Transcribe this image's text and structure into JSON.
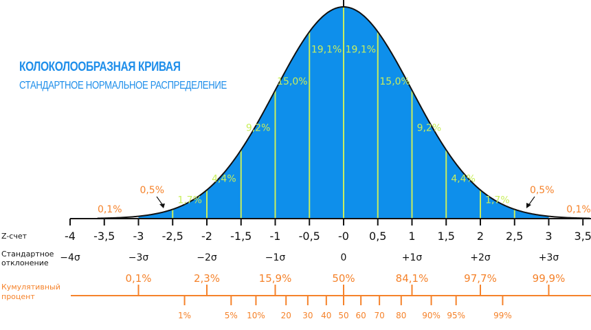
{
  "title": "КОЛОКОЛООБРАЗНАЯ КРИВАЯ",
  "subtitle": "СТАНДАРТНОЕ НОРМАЛЬНОЕ РАСПРЕДЕЛЕНИЕ",
  "colors": {
    "fill": "#0E8FEB",
    "divider": "#C9EE5C",
    "accent": "#F5822A",
    "text_blue": "#1E8EEA",
    "axis": "#111111"
  },
  "row_labels": {
    "z_score": "Z-счет",
    "std_line1": "Стандартное",
    "std_line2": "отклонение",
    "cum_line1": "Кумулятивный",
    "cum_line2": "процент"
  },
  "z_ticks": [
    {
      "z": -4,
      "label": "-4"
    },
    {
      "z": -3.5,
      "label": "-3,5"
    },
    {
      "z": -3,
      "label": "-3"
    },
    {
      "z": -2.5,
      "label": "-2,5"
    },
    {
      "z": -2,
      "label": "-2"
    },
    {
      "z": -1.5,
      "label": "-1,5"
    },
    {
      "z": -1,
      "label": "-1"
    },
    {
      "z": -0.5,
      "label": "-0,5"
    },
    {
      "z": 0,
      "label": "-0"
    },
    {
      "z": 0.5,
      "label": "0,5"
    },
    {
      "z": 1,
      "label": "1"
    },
    {
      "z": 1.5,
      "label": "1,5"
    },
    {
      "z": 2,
      "label": "2"
    },
    {
      "z": 2.5,
      "label": "2,5"
    },
    {
      "z": 3,
      "label": "3"
    },
    {
      "z": 3.5,
      "label": "3,5"
    }
  ],
  "sigma_labels": [
    {
      "z": -4,
      "label": "−4σ"
    },
    {
      "z": -3,
      "label": "−3σ"
    },
    {
      "z": -2,
      "label": "−2σ"
    },
    {
      "z": -1,
      "label": "−1σ"
    },
    {
      "z": 0,
      "label": "0"
    },
    {
      "z": 1,
      "label": "+1σ"
    },
    {
      "z": 2,
      "label": "+2σ"
    },
    {
      "z": 3,
      "label": "+3σ"
    }
  ],
  "area_labels": [
    {
      "z": -0.25,
      "level": 0.8,
      "label": "19,1%"
    },
    {
      "z": 0.25,
      "level": 0.8,
      "label": "19,1%"
    },
    {
      "z": -0.75,
      "level": 0.65,
      "label": "15,0%"
    },
    {
      "z": 0.75,
      "level": 0.65,
      "label": "15,0%"
    },
    {
      "z": -1.25,
      "level": 0.43,
      "label": "9,2%"
    },
    {
      "z": 1.25,
      "level": 0.43,
      "label": "9,2%"
    },
    {
      "z": -1.75,
      "level": 0.19,
      "label": "4,4%"
    },
    {
      "z": 1.75,
      "level": 0.19,
      "label": "4,4%"
    },
    {
      "z": -2.25,
      "level": 0.09,
      "label": "1,7%"
    },
    {
      "z": 2.25,
      "level": 0.09,
      "label": "1,7%"
    }
  ],
  "tail_labels": {
    "outer_left": {
      "z": -3.5,
      "label": "0,1%"
    },
    "outer_right": {
      "z": 3.5,
      "label": "0,1%"
    },
    "inner_left": {
      "z": -2.5,
      "label": "0,5%"
    },
    "inner_right": {
      "z": 2.5,
      "label": "0,5%"
    }
  },
  "cumulative_upper": [
    {
      "z": -3,
      "label": "0,1%"
    },
    {
      "z": -2,
      "label": "2,3%"
    },
    {
      "z": -1,
      "label": "15,9%"
    },
    {
      "z": 0,
      "label": "50%"
    },
    {
      "z": 1,
      "label": "84,1%"
    },
    {
      "z": 2,
      "label": "97,7%"
    },
    {
      "z": 3,
      "label": "99,9%"
    }
  ],
  "cumulative_lower": [
    {
      "z": -2.326,
      "label": "1%"
    },
    {
      "z": -1.645,
      "label": "5%"
    },
    {
      "z": -1.282,
      "label": "10%"
    },
    {
      "z": -0.842,
      "label": "20"
    },
    {
      "z": -0.524,
      "label": "30"
    },
    {
      "z": -0.253,
      "label": "40"
    },
    {
      "z": 0,
      "label": "50"
    },
    {
      "z": 0.253,
      "label": "60"
    },
    {
      "z": 0.524,
      "label": "70"
    },
    {
      "z": 0.842,
      "label": "80"
    },
    {
      "z": 1.282,
      "label": "90%"
    },
    {
      "z": 1.645,
      "label": "95%"
    },
    {
      "z": 2.326,
      "label": "99%"
    }
  ]
}
